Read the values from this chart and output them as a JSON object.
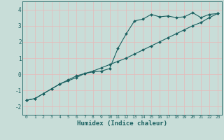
{
  "xlabel": "Humidex (Indice chaleur)",
  "ylabel": "",
  "background_color": "#c8ddd8",
  "grid_color": "#e8b8b8",
  "line_color": "#1a6060",
  "xlim": [
    -0.5,
    23.5
  ],
  "ylim": [
    -2.5,
    4.5
  ],
  "xticks": [
    0,
    1,
    2,
    3,
    4,
    5,
    6,
    7,
    8,
    9,
    10,
    11,
    12,
    13,
    14,
    15,
    16,
    17,
    18,
    19,
    20,
    21,
    22,
    23
  ],
  "yticks": [
    -2,
    -1,
    0,
    1,
    2,
    3,
    4
  ],
  "series1_x": [
    0,
    1,
    2,
    3,
    4,
    5,
    6,
    7,
    8,
    9,
    10,
    11,
    12,
    13,
    14,
    15,
    16,
    17,
    18,
    19,
    20,
    21,
    22,
    23
  ],
  "series1_y": [
    -1.6,
    -1.5,
    -1.2,
    -0.9,
    -0.6,
    -0.4,
    -0.2,
    0.05,
    0.15,
    0.2,
    0.35,
    1.6,
    2.5,
    3.3,
    3.4,
    3.7,
    3.55,
    3.6,
    3.5,
    3.55,
    3.8,
    3.5,
    3.7,
    3.75
  ],
  "series2_x": [
    0,
    1,
    2,
    3,
    4,
    5,
    6,
    7,
    8,
    9,
    10,
    11,
    12,
    13,
    14,
    15,
    16,
    17,
    18,
    19,
    20,
    21,
    22,
    23
  ],
  "series2_y": [
    -1.6,
    -1.5,
    -1.2,
    -0.9,
    -0.6,
    -0.35,
    -0.1,
    0.05,
    0.2,
    0.4,
    0.6,
    0.8,
    1.0,
    1.25,
    1.5,
    1.75,
    2.0,
    2.25,
    2.5,
    2.75,
    3.0,
    3.2,
    3.5,
    3.75
  ]
}
